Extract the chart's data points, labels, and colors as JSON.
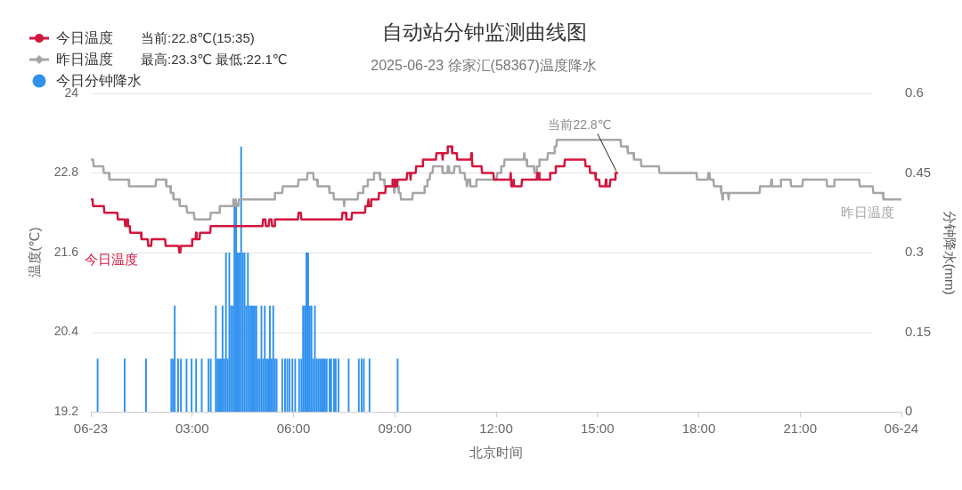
{
  "chart_data": {
    "type": "line",
    "title": "自动站分钟监测曲线图",
    "subtitle": "2025-06-23 徐家汇(58367)温度降水",
    "xlabel": "北京时间",
    "ylabel": "温度(℃)",
    "y2label": "分钟降水(mm)",
    "xlim": [
      "2025-06-23T00:00",
      "2025-06-24T00:00"
    ],
    "xticks": [
      {
        "value": "2025-06-23T00:00",
        "label": "06-23"
      },
      {
        "value": "2025-06-23T03:00",
        "label": "03:00"
      },
      {
        "value": "2025-06-23T06:00",
        "label": "06:00"
      },
      {
        "value": "2025-06-23T09:00",
        "label": "09:00"
      },
      {
        "value": "2025-06-23T12:00",
        "label": "12:00"
      },
      {
        "value": "2025-06-23T15:00",
        "label": "15:00"
      },
      {
        "value": "2025-06-23T18:00",
        "label": "18:00"
      },
      {
        "value": "2025-06-23T21:00",
        "label": "21:00"
      },
      {
        "value": "2025-06-24T00:00",
        "label": "06-24"
      }
    ],
    "ylim": [
      19.2,
      24
    ],
    "yticks": [
      19.2,
      20.4,
      21.6,
      22.8,
      24
    ],
    "y2lim": [
      0,
      0.6
    ],
    "y2ticks": [
      0,
      0.15,
      0.3,
      0.45,
      0.6
    ],
    "grid": "y",
    "legend": "top left",
    "annotations": [
      "当前:22.8℃(15:35)",
      "最高:23.3℃ 最低:22.1℃",
      {
        "text": "当前22.8℃",
        "x": "2025-06-23T15:35",
        "y": 22.8
      }
    ],
    "series": [
      {
        "name": "今日温度",
        "color": "#d2163e",
        "x": [
          "2025-06-23T00:00",
          "2025-06-23T00:03",
          "2025-06-23T00:04",
          "2025-06-23T00:23",
          "2025-06-23T00:24",
          "2025-06-23T00:47",
          "2025-06-23T00:48",
          "2025-06-23T01:00",
          "2025-06-23T01:01",
          "2025-06-23T01:03",
          "2025-06-23T01:04",
          "2025-06-23T01:05",
          "2025-06-23T01:06",
          "2025-06-23T01:09",
          "2025-06-23T01:10",
          "2025-06-23T01:29",
          "2025-06-23T01:30",
          "2025-06-23T01:41",
          "2025-06-23T01:42",
          "2025-06-23T01:47",
          "2025-06-23T01:48",
          "2025-06-23T02:12",
          "2025-06-23T02:13",
          "2025-06-23T02:36",
          "2025-06-23T02:37",
          "2025-06-23T02:39",
          "2025-06-23T02:40",
          "2025-06-23T02:59",
          "2025-06-23T03:00",
          "2025-06-23T03:06",
          "2025-06-23T03:07",
          "2025-06-23T03:08",
          "2025-06-23T03:13",
          "2025-06-23T03:14",
          "2025-06-23T03:32",
          "2025-06-23T03:33",
          "2025-06-23T05:05",
          "2025-06-23T05:06",
          "2025-06-23T05:10",
          "2025-06-23T05:11",
          "2025-06-23T05:16",
          "2025-06-23T05:17",
          "2025-06-23T05:21",
          "2025-06-23T05:22",
          "2025-06-23T05:26",
          "2025-06-23T05:27",
          "2025-06-23T06:08",
          "2025-06-23T06:09",
          "2025-06-23T06:13",
          "2025-06-23T06:14",
          "2025-06-23T07:26",
          "2025-06-23T07:27",
          "2025-06-23T07:33",
          "2025-06-23T07:34",
          "2025-06-23T07:43",
          "2025-06-23T07:44",
          "2025-06-23T08:07",
          "2025-06-23T08:08",
          "2025-06-23T08:12",
          "2025-06-23T08:13",
          "2025-06-23T08:14",
          "2025-06-23T08:17",
          "2025-06-23T08:18",
          "2025-06-23T08:31",
          "2025-06-23T08:32",
          "2025-06-23T08:43",
          "2025-06-23T08:44",
          "2025-06-23T08:55",
          "2025-06-23T08:56",
          "2025-06-23T08:57",
          "2025-06-23T08:59",
          "2025-06-23T09:00",
          "2025-06-23T09:01",
          "2025-06-23T09:04",
          "2025-06-23T09:05",
          "2025-06-23T09:21",
          "2025-06-23T09:22",
          "2025-06-23T09:27",
          "2025-06-23T09:28",
          "2025-06-23T09:29",
          "2025-06-23T09:37",
          "2025-06-23T09:38",
          "2025-06-23T09:49",
          "2025-06-23T09:50",
          "2025-06-23T10:13",
          "2025-06-23T10:14",
          "2025-06-23T10:24",
          "2025-06-23T10:25",
          "2025-06-23T10:26",
          "2025-06-23T10:33",
          "2025-06-23T10:34",
          "2025-06-23T10:41",
          "2025-06-23T10:42",
          "2025-06-23T10:50",
          "2025-06-23T10:51",
          "2025-06-23T11:15",
          "2025-06-23T11:16",
          "2025-06-23T11:17",
          "2025-06-23T11:18",
          "2025-06-23T11:34",
          "2025-06-23T11:35",
          "2025-06-23T11:55",
          "2025-06-23T11:56",
          "2025-06-23T12:25",
          "2025-06-23T12:26",
          "2025-06-23T12:27",
          "2025-06-23T12:30",
          "2025-06-23T12:31",
          "2025-06-23T12:32",
          "2025-06-23T12:45",
          "2025-06-23T12:46",
          "2025-06-23T13:12",
          "2025-06-23T13:13",
          "2025-06-23T13:14",
          "2025-06-23T13:16",
          "2025-06-23T13:17",
          "2025-06-23T13:35",
          "2025-06-23T13:36",
          "2025-06-23T13:45",
          "2025-06-23T13:46",
          "2025-06-23T14:01",
          "2025-06-23T14:02",
          "2025-06-23T14:38",
          "2025-06-23T14:39",
          "2025-06-23T14:46",
          "2025-06-23T14:47",
          "2025-06-23T14:56",
          "2025-06-23T14:57",
          "2025-06-23T15:03",
          "2025-06-23T15:04",
          "2025-06-23T15:14",
          "2025-06-23T15:15",
          "2025-06-23T15:16",
          "2025-06-23T15:22",
          "2025-06-23T15:23",
          "2025-06-23T15:31",
          "2025-06-23T15:32",
          "2025-06-23T15:35"
        ],
        "values": [
          22.4,
          22.4,
          22.3,
          22.3,
          22.2,
          22.2,
          22.1,
          22.1,
          22.0,
          22.0,
          22.1,
          22.1,
          22.0,
          22.0,
          21.9,
          21.9,
          21.8,
          21.8,
          21.7,
          21.7,
          21.8,
          21.8,
          21.7,
          21.7,
          21.6,
          21.6,
          21.7,
          21.7,
          21.8,
          21.8,
          21.9,
          21.8,
          21.8,
          21.9,
          21.9,
          22.0,
          22.0,
          22.1,
          22.1,
          22.0,
          22.0,
          22.1,
          22.1,
          22.0,
          22.0,
          22.1,
          22.1,
          22.2,
          22.2,
          22.1,
          22.1,
          22.2,
          22.2,
          22.1,
          22.1,
          22.2,
          22.2,
          22.3,
          22.3,
          22.4,
          22.3,
          22.3,
          22.4,
          22.4,
          22.5,
          22.5,
          22.6,
          22.6,
          22.7,
          22.6,
          22.6,
          22.7,
          22.6,
          22.6,
          22.7,
          22.7,
          22.8,
          22.8,
          22.7,
          22.8,
          22.8,
          22.9,
          22.9,
          23.0,
          23.0,
          23.1,
          23.1,
          23.0,
          23.1,
          23.1,
          23.2,
          23.2,
          23.1,
          23.1,
          23.0,
          23.0,
          23.1,
          23.0,
          22.9,
          22.9,
          22.8,
          22.8,
          22.7,
          22.7,
          22.8,
          22.6,
          22.6,
          22.7,
          22.6,
          22.6,
          22.7,
          22.7,
          22.8,
          22.7,
          22.8,
          22.7,
          22.7,
          22.8,
          22.8,
          22.9,
          22.9,
          23.0,
          23.0,
          22.9,
          22.9,
          22.8,
          22.8,
          22.7,
          22.7,
          22.6,
          22.6,
          22.7,
          22.6,
          22.6,
          22.7,
          22.7,
          22.8,
          22.8
        ]
      },
      {
        "name": "昨日温度",
        "color": "#a6a6a6",
        "x": [
          "2025-06-23T00:00",
          "2025-06-23T00:04",
          "2025-06-23T00:05",
          "2025-06-23T00:22",
          "2025-06-23T00:23",
          "2025-06-23T00:32",
          "2025-06-23T00:33",
          "2025-06-23T01:07",
          "2025-06-23T01:08",
          "2025-06-23T01:55",
          "2025-06-23T01:56",
          "2025-06-23T02:13",
          "2025-06-23T02:14",
          "2025-06-23T02:21",
          "2025-06-23T02:22",
          "2025-06-23T02:26",
          "2025-06-23T02:27",
          "2025-06-23T02:37",
          "2025-06-23T02:38",
          "2025-06-23T02:50",
          "2025-06-23T02:51",
          "2025-06-23T03:03",
          "2025-06-23T03:04",
          "2025-06-23T03:32",
          "2025-06-23T03:33",
          "2025-06-23T03:48",
          "2025-06-23T03:49",
          "2025-06-23T04:12",
          "2025-06-23T04:13",
          "2025-06-23T04:14",
          "2025-06-23T04:16",
          "2025-06-23T04:17",
          "2025-06-23T04:19",
          "2025-06-23T04:22",
          "2025-06-23T04:23",
          "2025-06-23T05:26",
          "2025-06-23T05:27",
          "2025-06-23T05:40",
          "2025-06-23T05:41",
          "2025-06-23T06:08",
          "2025-06-23T06:09",
          "2025-06-23T06:24",
          "2025-06-23T06:25",
          "2025-06-23T06:35",
          "2025-06-23T06:36",
          "2025-06-23T06:42",
          "2025-06-23T06:43",
          "2025-06-23T07:03",
          "2025-06-23T07:04",
          "2025-06-23T07:11",
          "2025-06-23T07:12",
          "2025-06-23T07:29",
          "2025-06-23T07:30",
          "2025-06-23T07:31",
          "2025-06-23T07:54",
          "2025-06-23T07:55",
          "2025-06-23T08:03",
          "2025-06-23T08:04",
          "2025-06-23T08:11",
          "2025-06-23T08:12",
          "2025-06-23T08:22",
          "2025-06-23T08:23",
          "2025-06-23T08:33",
          "2025-06-23T08:34",
          "2025-06-23T08:41",
          "2025-06-23T08:42",
          "2025-06-23T08:58",
          "2025-06-23T08:59",
          "2025-06-23T09:01",
          "2025-06-23T09:06",
          "2025-06-23T09:07",
          "2025-06-23T09:10",
          "2025-06-23T09:11",
          "2025-06-23T09:31",
          "2025-06-23T09:32",
          "2025-06-23T09:52",
          "2025-06-23T09:53",
          "2025-06-23T09:57",
          "2025-06-23T09:58",
          "2025-06-23T10:02",
          "2025-06-23T10:03",
          "2025-06-23T10:07",
          "2025-06-23T10:08",
          "2025-06-23T10:24",
          "2025-06-23T10:25",
          "2025-06-23T10:33",
          "2025-06-23T10:34",
          "2025-06-23T10:36",
          "2025-06-23T10:37",
          "2025-06-23T10:45",
          "2025-06-23T10:46",
          "2025-06-23T10:55",
          "2025-06-23T10:56",
          "2025-06-23T11:04",
          "2025-06-23T11:05",
          "2025-06-23T11:07",
          "2025-06-23T11:08",
          "2025-06-23T11:09",
          "2025-06-23T11:10",
          "2025-06-23T11:13",
          "2025-06-23T11:14",
          "2025-06-23T11:24",
          "2025-06-23T11:25",
          "2025-06-23T12:01",
          "2025-06-23T12:02",
          "2025-06-23T12:08",
          "2025-06-23T12:09",
          "2025-06-23T12:14",
          "2025-06-23T12:15",
          "2025-06-23T12:49",
          "2025-06-23T12:50",
          "2025-06-23T12:51",
          "2025-06-23T12:54",
          "2025-06-23T12:55",
          "2025-06-23T13:07",
          "2025-06-23T13:08",
          "2025-06-23T13:12",
          "2025-06-23T13:13",
          "2025-06-23T13:16",
          "2025-06-23T13:17",
          "2025-06-23T13:31",
          "2025-06-23T13:32",
          "2025-06-23T13:43",
          "2025-06-23T13:44",
          "2025-06-23T13:47",
          "2025-06-23T13:48",
          "2025-06-23T15:41",
          "2025-06-23T15:42",
          "2025-06-23T15:53",
          "2025-06-23T15:54",
          "2025-06-23T16:04",
          "2025-06-23T16:05",
          "2025-06-23T16:17",
          "2025-06-23T16:18",
          "2025-06-23T16:49",
          "2025-06-23T16:50",
          "2025-06-23T17:56",
          "2025-06-23T17:57",
          "2025-06-23T18:16",
          "2025-06-23T18:17",
          "2025-06-23T18:19",
          "2025-06-23T18:20",
          "2025-06-23T18:26",
          "2025-06-23T18:27",
          "2025-06-23T18:39",
          "2025-06-23T18:40",
          "2025-06-23T18:41",
          "2025-06-23T18:42",
          "2025-06-23T18:43",
          "2025-06-23T18:52",
          "2025-06-23T18:53",
          "2025-06-23T18:54",
          "2025-06-23T19:48",
          "2025-06-23T19:49",
          "2025-06-23T20:08",
          "2025-06-23T20:09",
          "2025-06-23T20:10",
          "2025-06-23T20:25",
          "2025-06-23T20:26",
          "2025-06-23T20:43",
          "2025-06-23T20:44",
          "2025-06-23T21:04",
          "2025-06-23T21:05",
          "2025-06-23T21:47",
          "2025-06-23T21:48",
          "2025-06-23T22:00",
          "2025-06-23T22:01",
          "2025-06-23T22:45",
          "2025-06-23T22:46",
          "2025-06-23T23:09",
          "2025-06-23T23:10",
          "2025-06-23T23:27",
          "2025-06-23T23:28",
          "2025-06-23T23:59"
        ],
        "values": [
          23.0,
          23.0,
          22.9,
          22.9,
          22.8,
          22.8,
          22.7,
          22.7,
          22.6,
          22.6,
          22.7,
          22.7,
          22.6,
          22.6,
          22.5,
          22.5,
          22.4,
          22.4,
          22.3,
          22.3,
          22.2,
          22.2,
          22.1,
          22.1,
          22.2,
          22.2,
          22.3,
          22.3,
          22.4,
          22.3,
          22.3,
          22.4,
          22.3,
          22.3,
          22.4,
          22.4,
          22.5,
          22.5,
          22.6,
          22.6,
          22.7,
          22.7,
          22.8,
          22.8,
          22.7,
          22.7,
          22.6,
          22.6,
          22.5,
          22.5,
          22.4,
          22.4,
          22.3,
          22.4,
          22.4,
          22.5,
          22.5,
          22.6,
          22.6,
          22.7,
          22.7,
          22.8,
          22.8,
          22.7,
          22.7,
          22.6,
          22.6,
          22.5,
          22.6,
          22.6,
          22.5,
          22.5,
          22.4,
          22.4,
          22.5,
          22.5,
          22.6,
          22.6,
          22.7,
          22.7,
          22.8,
          22.8,
          22.9,
          22.9,
          22.8,
          22.8,
          22.9,
          22.9,
          22.8,
          22.8,
          22.9,
          22.9,
          22.8,
          22.8,
          22.7,
          22.7,
          22.6,
          22.6,
          22.7,
          22.7,
          22.6,
          22.6,
          22.7,
          22.7,
          22.8,
          22.8,
          22.9,
          22.9,
          23.0,
          23.0,
          23.1,
          23.0,
          23.0,
          22.9,
          22.9,
          22.8,
          22.8,
          22.9,
          22.9,
          23.0,
          23.0,
          23.1,
          23.1,
          23.2,
          23.2,
          23.3,
          23.3,
          23.2,
          23.2,
          23.1,
          23.1,
          23.0,
          23.0,
          22.9,
          22.9,
          22.8,
          22.8,
          22.7,
          22.7,
          22.8,
          22.8,
          22.7,
          22.7,
          22.6,
          22.6,
          22.5,
          22.5,
          22.4,
          22.5,
          22.5,
          22.4,
          22.5,
          22.5,
          22.6,
          22.6,
          22.7,
          22.6,
          22.6,
          22.7,
          22.7,
          22.6,
          22.6,
          22.7,
          22.7,
          22.6,
          22.6,
          22.7,
          22.7,
          22.6,
          22.6,
          22.5,
          22.5,
          22.4,
          22.4
        ]
      },
      {
        "name": "今日分钟降水",
        "type": "bar",
        "axis": "y2",
        "color": "#2e90ef",
        "x": [
          "2025-06-23T00:12",
          "2025-06-23T01:00",
          "2025-06-23T01:38",
          "2025-06-23T02:23",
          "2025-06-23T02:26",
          "2025-06-23T02:29",
          "2025-06-23T02:35",
          "2025-06-23T02:40",
          "2025-06-23T02:50",
          "2025-06-23T02:59",
          "2025-06-23T03:07",
          "2025-06-23T03:17",
          "2025-06-23T03:29",
          "2025-06-23T03:33",
          "2025-06-23T03:42",
          "2025-06-23T03:45",
          "2025-06-23T03:48",
          "2025-06-23T03:51",
          "2025-06-23T03:54",
          "2025-06-23T03:57",
          "2025-06-23T04:00",
          "2025-06-23T04:03",
          "2025-06-23T04:06",
          "2025-06-23T04:09",
          "2025-06-23T04:12",
          "2025-06-23T04:15",
          "2025-06-23T04:18",
          "2025-06-23T04:21",
          "2025-06-23T04:24",
          "2025-06-23T04:27",
          "2025-06-23T04:30",
          "2025-06-23T04:33",
          "2025-06-23T04:36",
          "2025-06-23T04:39",
          "2025-06-23T04:42",
          "2025-06-23T04:45",
          "2025-06-23T04:48",
          "2025-06-23T04:51",
          "2025-06-23T04:54",
          "2025-06-23T04:57",
          "2025-06-23T05:00",
          "2025-06-23T05:03",
          "2025-06-23T05:06",
          "2025-06-23T05:09",
          "2025-06-23T05:12",
          "2025-06-23T05:15",
          "2025-06-23T05:18",
          "2025-06-23T05:21",
          "2025-06-23T05:24",
          "2025-06-23T05:27",
          "2025-06-23T05:30",
          "2025-06-23T05:40",
          "2025-06-23T05:45",
          "2025-06-23T05:49",
          "2025-06-23T05:53",
          "2025-06-23T05:58",
          "2025-06-23T06:03",
          "2025-06-23T06:10",
          "2025-06-23T06:14",
          "2025-06-23T06:17",
          "2025-06-23T06:20",
          "2025-06-23T06:23",
          "2025-06-23T06:26",
          "2025-06-23T06:29",
          "2025-06-23T06:32",
          "2025-06-23T06:35",
          "2025-06-23T06:38",
          "2025-06-23T06:41",
          "2025-06-23T06:44",
          "2025-06-23T06:47",
          "2025-06-23T06:50",
          "2025-06-23T06:53",
          "2025-06-23T06:56",
          "2025-06-23T06:59",
          "2025-06-23T07:04",
          "2025-06-23T07:07",
          "2025-06-23T07:12",
          "2025-06-23T07:15",
          "2025-06-23T07:20",
          "2025-06-23T07:38",
          "2025-06-23T07:56",
          "2025-06-23T08:01",
          "2025-06-23T08:05",
          "2025-06-23T08:15",
          "2025-06-23T09:05"
        ],
        "values": [
          0.1,
          0.1,
          0.1,
          0.1,
          0.1,
          0.2,
          0.1,
          0.1,
          0.1,
          0.1,
          0.1,
          0.1,
          0.1,
          0.1,
          0.2,
          0.1,
          0.1,
          0.1,
          0.2,
          0.1,
          0.3,
          0.1,
          0.3,
          0.2,
          0.2,
          0.4,
          0.4,
          0.3,
          0.3,
          0.5,
          0.3,
          0.3,
          0.2,
          0.3,
          0.2,
          0.2,
          0.2,
          0.2,
          0.2,
          0.1,
          0.1,
          0.2,
          0.1,
          0.2,
          0.1,
          0.1,
          0.2,
          0.1,
          0.2,
          0.1,
          0.1,
          0.1,
          0.1,
          0.1,
          0.1,
          0.1,
          0.1,
          0.1,
          0.1,
          0.2,
          0.2,
          0.3,
          0.3,
          0.2,
          0.2,
          0.1,
          0.2,
          0.1,
          0.1,
          0.1,
          0.1,
          0.1,
          0.1,
          0.1,
          0.1,
          0.1,
          0.1,
          0.1,
          0.1,
          0.1,
          0.1,
          0.1,
          0.1,
          0.1,
          0.1
        ]
      }
    ]
  }
}
